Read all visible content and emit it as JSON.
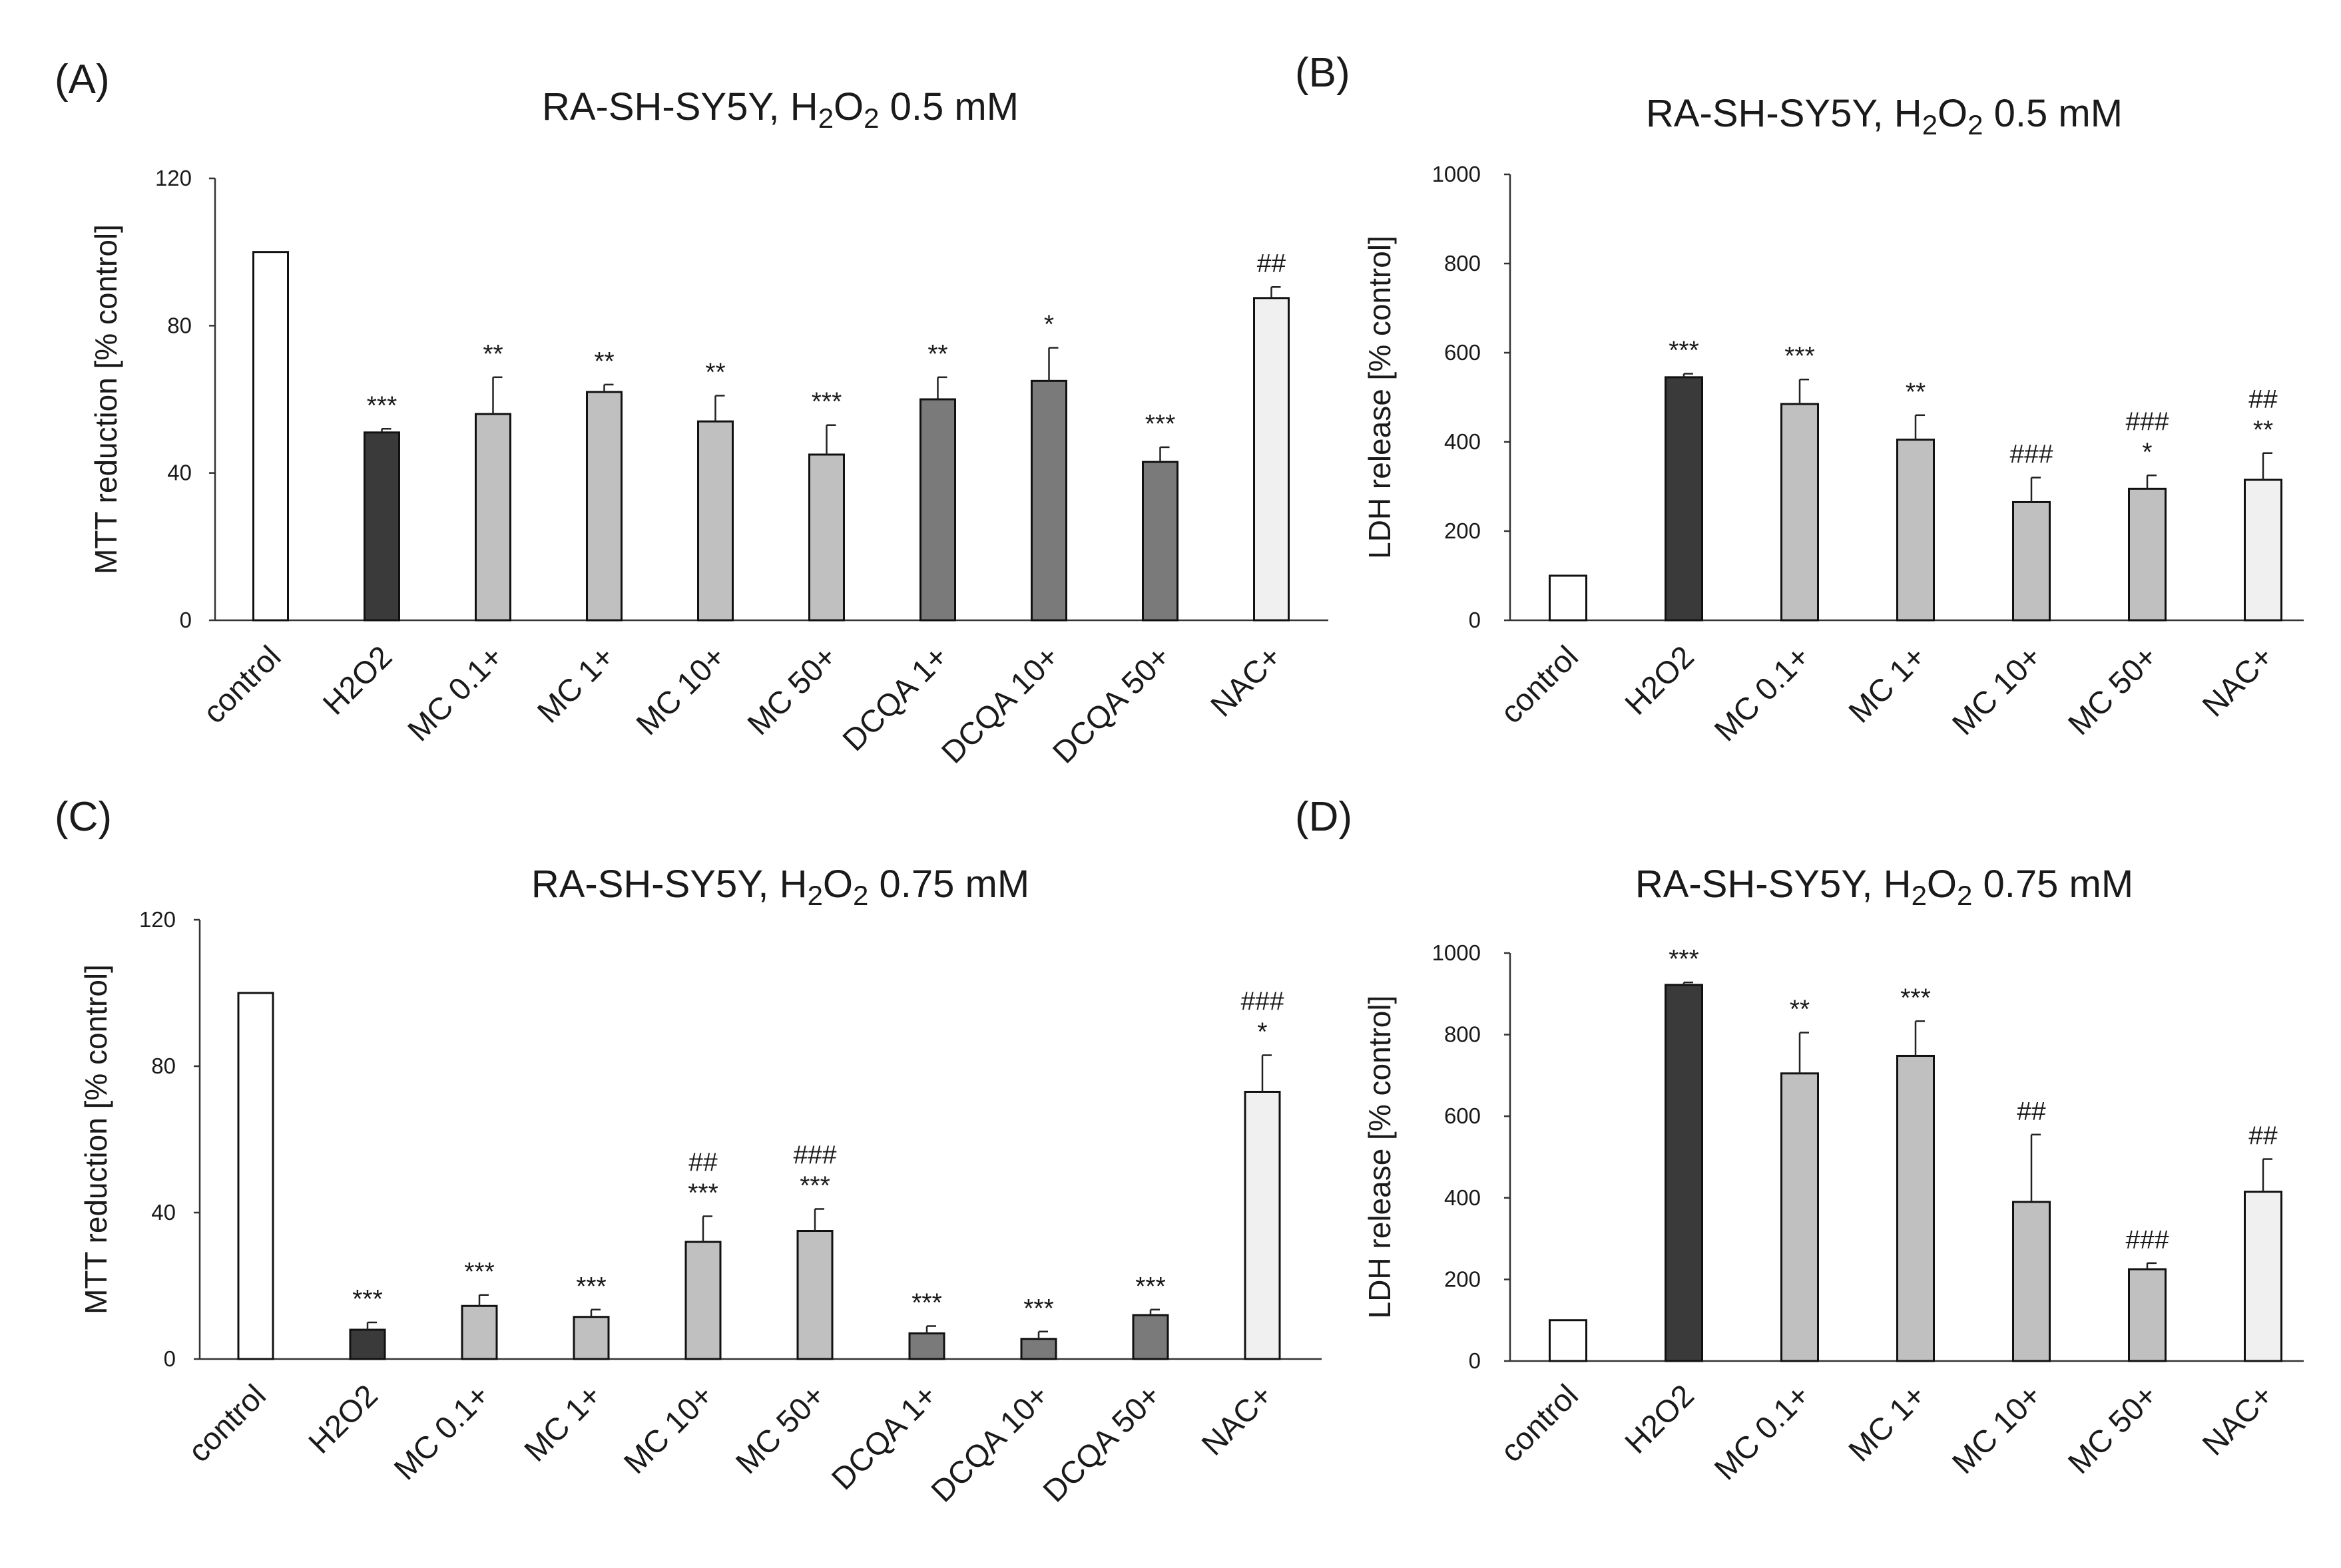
{
  "colors": {
    "control": "#ffffff",
    "h2o2": "#3a3a3a",
    "mc": "#c0c0c0",
    "dcqa": "#7a7a7a",
    "nac": "#f0f0f0"
  },
  "chart_data": [
    {
      "panel": "(A)",
      "type": "bar",
      "title_main": "RA-SH-SY5Y,  H",
      "title_sub1": "2",
      "title_mid": "O",
      "title_sub2": "2",
      "title_tail": " 0.5 mM",
      "ylabel": "MTT reduction [% control]",
      "ylim": [
        0,
        120
      ],
      "yticks": [
        "0",
        "40",
        "80",
        "120"
      ],
      "categories": [
        "control",
        "H2O2",
        "MC 0.1+",
        "MC 1+",
        "MC 10+",
        "MC 50+",
        "DCQA 1+",
        "DCQA 10+",
        "DCQA 50+",
        "NAC+"
      ],
      "groups": [
        "control",
        "h2o2",
        "mc",
        "mc",
        "mc",
        "mc",
        "dcqa",
        "dcqa",
        "dcqa",
        "nac"
      ],
      "values": [
        100,
        51,
        56,
        62,
        54,
        45,
        60,
        65,
        43,
        87.5
      ],
      "errors": [
        0,
        1,
        10,
        2,
        7,
        8,
        6,
        9,
        4,
        3
      ],
      "annotations": [
        "",
        "***",
        "**",
        "**",
        "**",
        "***",
        "**",
        "*",
        "***",
        "##"
      ]
    },
    {
      "panel": "(B)",
      "type": "bar",
      "title_main": "RA-SH-SY5Y,  H",
      "title_sub1": "2",
      "title_mid": "O",
      "title_sub2": "2",
      "title_tail": " 0.5 mM",
      "ylabel": "LDH release [% control]",
      "ylim": [
        0,
        1000
      ],
      "yticks": [
        "0",
        "200",
        "400",
        "600",
        "800",
        "1000"
      ],
      "categories": [
        "control",
        "H2O2",
        "MC 0.1+",
        "MC 1+",
        "MC 10+",
        "MC 50+",
        "NAC+"
      ],
      "groups": [
        "control",
        "h2o2",
        "mc",
        "mc",
        "mc",
        "mc",
        "nac"
      ],
      "values": [
        100,
        545,
        485,
        405,
        265,
        295,
        315
      ],
      "errors": [
        0,
        8,
        55,
        55,
        55,
        30,
        60
      ],
      "annotations": [
        "",
        "***",
        "***",
        "**",
        "###",
        "###\n*",
        "##\n**"
      ]
    },
    {
      "panel": "(C)",
      "type": "bar",
      "title_main": "RA-SH-SY5Y,  H",
      "title_sub1": "2",
      "title_mid": "O",
      "title_sub2": "2",
      "title_tail": " 0.75 mM",
      "ylabel": "MTT reduction [% control]",
      "ylim": [
        0,
        120
      ],
      "yticks": [
        "0",
        "40",
        "80",
        "120"
      ],
      "categories": [
        "control",
        "H2O2",
        "MC 0.1+",
        "MC 1+",
        "MC 10+",
        "MC 50+",
        "DCQA 1+",
        "DCQA 10+",
        "DCQA 50+",
        "NAC+"
      ],
      "groups": [
        "control",
        "h2o2",
        "mc",
        "mc",
        "mc",
        "mc",
        "dcqa",
        "dcqa",
        "dcqa",
        "nac"
      ],
      "values": [
        100,
        8,
        14.5,
        11.5,
        32,
        35,
        7,
        5.5,
        12,
        73
      ],
      "errors": [
        0,
        2,
        3,
        2,
        7,
        6,
        2,
        2,
        1.5,
        10
      ],
      "annotations": [
        "",
        "***",
        "***",
        "***",
        "##\n***",
        "###\n***",
        "***",
        "***",
        "***",
        "###\n*"
      ]
    },
    {
      "panel": "(D)",
      "type": "bar",
      "title_main": "RA-SH-SY5Y,  H",
      "title_sub1": "2",
      "title_mid": "O",
      "title_sub2": "2",
      "title_tail": " 0.75 mM",
      "ylabel": "LDH release [% control]",
      "ylim": [
        0,
        1000
      ],
      "yticks": [
        "0",
        "200",
        "400",
        "600",
        "800",
        "1000"
      ],
      "categories": [
        "control",
        "H2O2",
        "MC 0.1+",
        "MC 1+",
        "MC 10+",
        "MC 50+",
        "NAC+"
      ],
      "groups": [
        "control",
        "h2o2",
        "mc",
        "mc",
        "mc",
        "mc",
        "nac"
      ],
      "values": [
        100,
        922,
        705,
        748,
        390,
        225,
        415
      ],
      "errors": [
        0,
        6,
        100,
        85,
        165,
        15,
        80
      ],
      "annotations": [
        "",
        "***",
        "**",
        "***",
        "##",
        "###",
        "##"
      ]
    }
  ]
}
